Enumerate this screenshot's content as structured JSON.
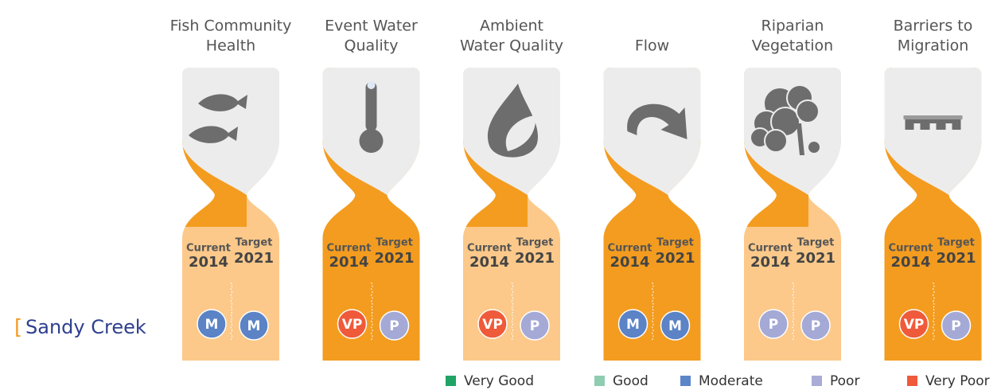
{
  "place": "Sandy Creek",
  "accent": "#f39c1f",
  "rating_colors": {
    "M": "#5b83c6",
    "P": "#a4a9d6",
    "VP": "#ef5a3a"
  },
  "columns": [
    {
      "title": [
        "Fish Community",
        "Health"
      ],
      "fill": "#fcc98a",
      "current": {
        "label": "Current",
        "year": "2014",
        "rating": "M"
      },
      "target": {
        "label": "Target",
        "year": "2021",
        "rating": "M"
      }
    },
    {
      "title": [
        "Event Water",
        "Quality"
      ],
      "fill": "#f39c1f",
      "current": {
        "label": "Current",
        "year": "2014",
        "rating": "VP"
      },
      "target": {
        "label": "Target",
        "year": "2021",
        "rating": "P"
      }
    },
    {
      "title": [
        "Ambient",
        "Water Quality"
      ],
      "fill": "#fcc98a",
      "current": {
        "label": "Current",
        "year": "2014",
        "rating": "VP"
      },
      "target": {
        "label": "Target",
        "year": "2021",
        "rating": "P"
      }
    },
    {
      "title": [
        "Flow"
      ],
      "fill": "#f39c1f",
      "current": {
        "label": "Current",
        "year": "2014",
        "rating": "M"
      },
      "target": {
        "label": "Target",
        "year": "2021",
        "rating": "M"
      }
    },
    {
      "title": [
        "Riparian",
        "Vegetation"
      ],
      "fill": "#fcc98a",
      "current": {
        "label": "Current",
        "year": "2014",
        "rating": "P"
      },
      "target": {
        "label": "Target",
        "year": "2021",
        "rating": "P"
      }
    },
    {
      "title": [
        "Barriers to",
        "Migration"
      ],
      "fill": "#f39c1f",
      "current": {
        "label": "Current",
        "year": "2014",
        "rating": "VP"
      },
      "target": {
        "label": "Target",
        "year": "2021",
        "rating": "P"
      }
    }
  ],
  "legend": [
    {
      "label": "Very Good",
      "color": "#21a366"
    },
    {
      "label": "Good",
      "color": "#8ecdb0"
    },
    {
      "label": "Moderate",
      "color": "#5b86c8"
    },
    {
      "label": "Poor",
      "color": "#a8acd6"
    },
    {
      "label": "Very Poor",
      "color": "#ef5a3a"
    }
  ]
}
